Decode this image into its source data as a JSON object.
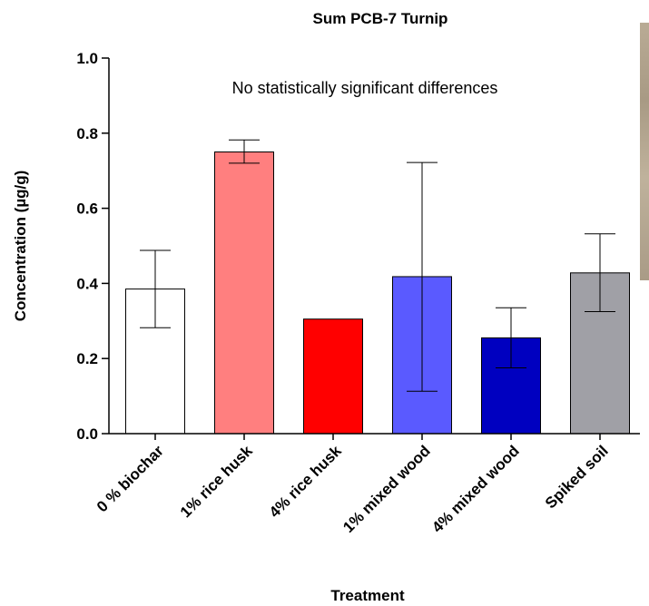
{
  "chart_data": {
    "type": "bar",
    "title": "Sum PCB-7 Turnip",
    "annotation": "No statistically significant differences",
    "xlabel": "Treatment",
    "ylabel": "Concentration  (µg/g)",
    "ylim": [
      0,
      1.0
    ],
    "yticks": [
      "0.0",
      "0.2",
      "0.4",
      "0.6",
      "0.8",
      "1.0"
    ],
    "grid": false,
    "categories": [
      "0 % biochar",
      "1% rice husk",
      "4% rice husk",
      "1% mixed wood",
      "4% mixed wood",
      "Spiked soil"
    ],
    "values": [
      0.385,
      0.75,
      0.305,
      0.418,
      0.255,
      0.428
    ],
    "error_low": [
      0.282,
      0.72,
      null,
      0.113,
      0.175,
      0.325
    ],
    "error_high": [
      0.488,
      0.782,
      null,
      0.722,
      0.335,
      0.532
    ],
    "colors": [
      "#ffffff",
      "#ff7f7f",
      "#ff0000",
      "#5a5aff",
      "#0000c0",
      "#a0a0a6"
    ]
  }
}
